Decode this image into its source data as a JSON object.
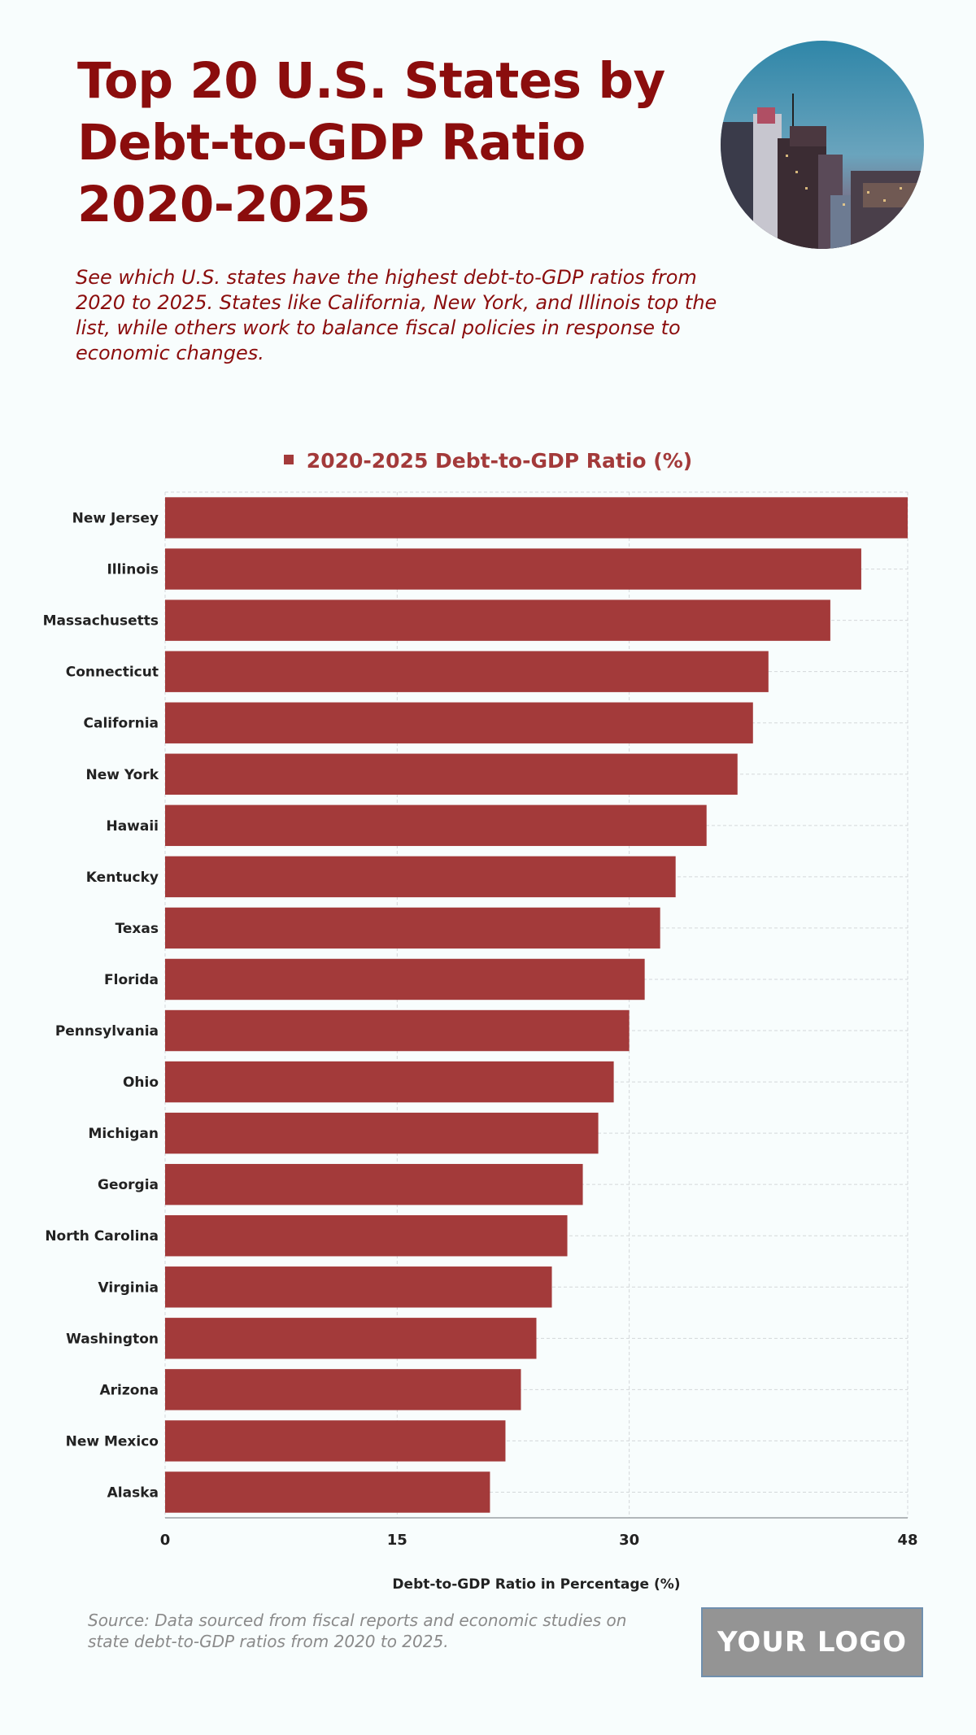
{
  "header": {
    "title": "Top 20 U.S. States by Debt-to-GDP Ratio 2020-2025",
    "subtitle": "See which U.S. states have the highest debt-to-GDP ratios from 2020 to 2025. States like California, New York, and Illinois top the list, while others work to balance fiscal policies in response to economic changes."
  },
  "colors": {
    "title": "#8b0d0d",
    "bar": "#a33a3a",
    "background": "#f8fdfd"
  },
  "chart_data": {
    "type": "bar",
    "orientation": "horizontal",
    "categories": [
      "New Jersey",
      "Illinois",
      "Massachusetts",
      "Connecticut",
      "California",
      "New York",
      "Hawaii",
      "Kentucky",
      "Texas",
      "Florida",
      "Pennsylvania",
      "Ohio",
      "Michigan",
      "Georgia",
      "North Carolina",
      "Virginia",
      "Washington",
      "Arizona",
      "New Mexico",
      "Alaska"
    ],
    "series": [
      {
        "name": "2020-2025 Debt-to-GDP Ratio (%)",
        "values": [
          48,
          45,
          43,
          39,
          38,
          37,
          35,
          33,
          32,
          31,
          30,
          29,
          28,
          27,
          26,
          25,
          24,
          23,
          22,
          21
        ]
      }
    ],
    "xlabel": "Debt-to-GDP Ratio in Percentage (%)",
    "xlim": [
      0,
      48
    ],
    "xticks": [
      0,
      15,
      30,
      48
    ],
    "grid": true,
    "legend_position": "top-center"
  },
  "footer": {
    "source": "Source: Data sourced from fiscal reports and economic studies on state debt-to-GDP ratios from 2020 to 2025.",
    "logo_text": "YOUR LOGO"
  }
}
